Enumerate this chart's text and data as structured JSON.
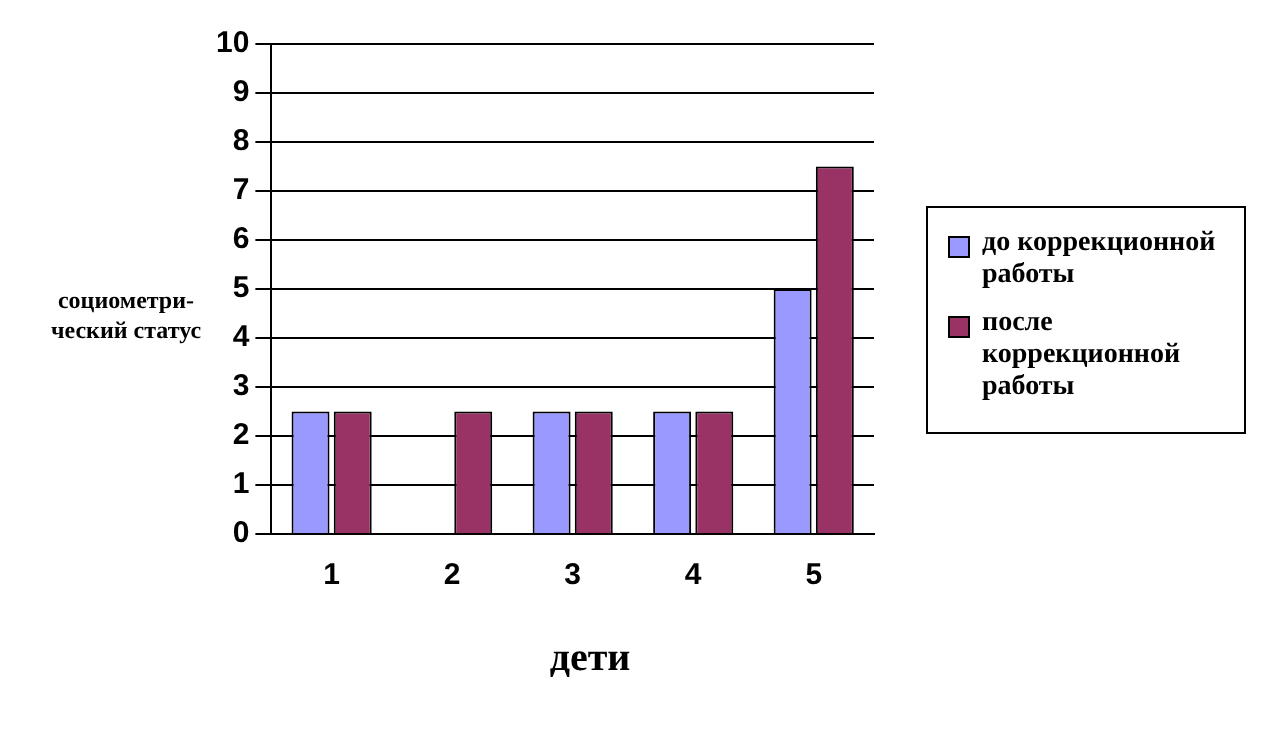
{
  "chart_data": {
    "type": "bar",
    "ylabel": "социометри-\nческий статус",
    "xlabel": "дети",
    "categories": [
      "1",
      "2",
      "3",
      "4",
      "5"
    ],
    "series": [
      {
        "name": "до коррекционной работы",
        "color": "#9999ff",
        "values": [
          2.5,
          0,
          2.5,
          2.5,
          5
        ]
      },
      {
        "name": "после коррекционной работы",
        "color": "#993366",
        "values": [
          2.5,
          2.5,
          2.5,
          2.5,
          7.5
        ]
      }
    ],
    "ylim": [
      0,
      10
    ],
    "yticks": [
      0,
      1,
      2,
      3,
      4,
      5,
      6,
      7,
      8,
      9,
      10
    ],
    "grid": "y",
    "legend": "right"
  }
}
